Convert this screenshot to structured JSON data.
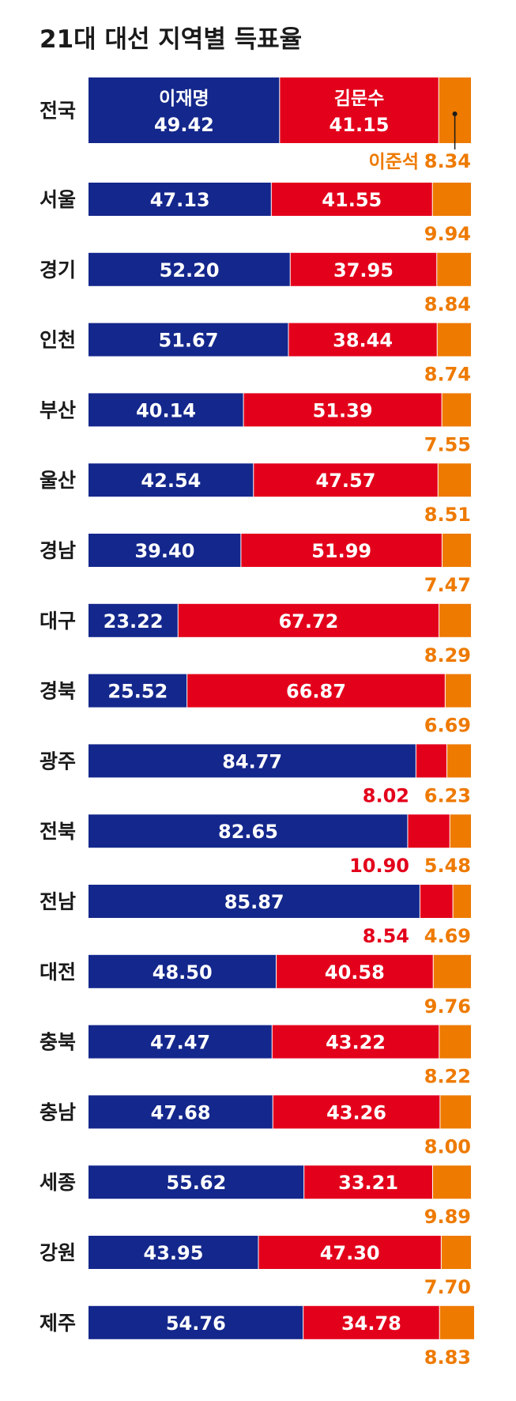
{
  "title": "21대 대선 지역별 득표율",
  "colors": {
    "lee": "#14278c",
    "kim": "#e3001b",
    "lheejs": "#ee7a00",
    "divider": "#ffffff",
    "text": "#1a1a1a"
  },
  "chart_data": {
    "type": "bar",
    "orientation": "horizontal",
    "stacked": true,
    "title": "21대 대선 지역별 득표율",
    "xlim": [
      0,
      100
    ],
    "series_names": [
      "이재명",
      "김문수",
      "이준석"
    ],
    "categories": [
      "전국",
      "서울",
      "경기",
      "인천",
      "부산",
      "울산",
      "경남",
      "대구",
      "경북",
      "광주",
      "전북",
      "전남",
      "대전",
      "충북",
      "충남",
      "세종",
      "강원",
      "제주"
    ],
    "series": [
      {
        "name": "이재명",
        "color": "#14278c",
        "values": [
          49.42,
          47.13,
          52.2,
          51.67,
          40.14,
          42.54,
          39.4,
          23.22,
          25.52,
          84.77,
          82.65,
          85.87,
          48.5,
          47.47,
          47.68,
          55.62,
          43.95,
          54.76
        ],
        "labels": [
          "49.42",
          "47.13",
          "52.20",
          "51.67",
          "40.14",
          "42.54",
          "39.40",
          "23.22",
          "25.52",
          "84.77",
          "82.65",
          "85.87",
          "48.50",
          "47.47",
          "47.68",
          "55.62",
          "43.95",
          "54.76"
        ]
      },
      {
        "name": "김문수",
        "color": "#e3001b",
        "values": [
          41.15,
          41.55,
          37.95,
          38.44,
          51.39,
          47.57,
          51.99,
          67.72,
          66.87,
          8.02,
          10.9,
          8.54,
          40.58,
          43.22,
          43.26,
          33.21,
          47.3,
          34.78
        ],
        "labels": [
          "41.15",
          "41.55",
          "37.95",
          "38.44",
          "51.39",
          "47.57",
          "51.99",
          "67.72",
          "66.87",
          "8.02",
          "10.90",
          "8.54",
          "40.58",
          "43.22",
          "43.26",
          "33.21",
          "47.30",
          "34.78"
        ]
      },
      {
        "name": "이준석",
        "color": "#ee7a00",
        "values": [
          8.34,
          9.94,
          8.84,
          8.74,
          7.55,
          8.51,
          7.47,
          8.29,
          6.69,
          6.23,
          5.48,
          4.69,
          9.76,
          8.22,
          8.0,
          9.89,
          7.7,
          8.83
        ],
        "labels": [
          "8.34",
          "9.94",
          "8.84",
          "8.74",
          "7.55",
          "8.51",
          "7.47",
          "8.29",
          "6.69",
          "6.23",
          "5.48",
          "4.69",
          "9.76",
          "8.22",
          "8.00",
          "9.89",
          "7.70",
          "8.83"
        ]
      }
    ]
  }
}
